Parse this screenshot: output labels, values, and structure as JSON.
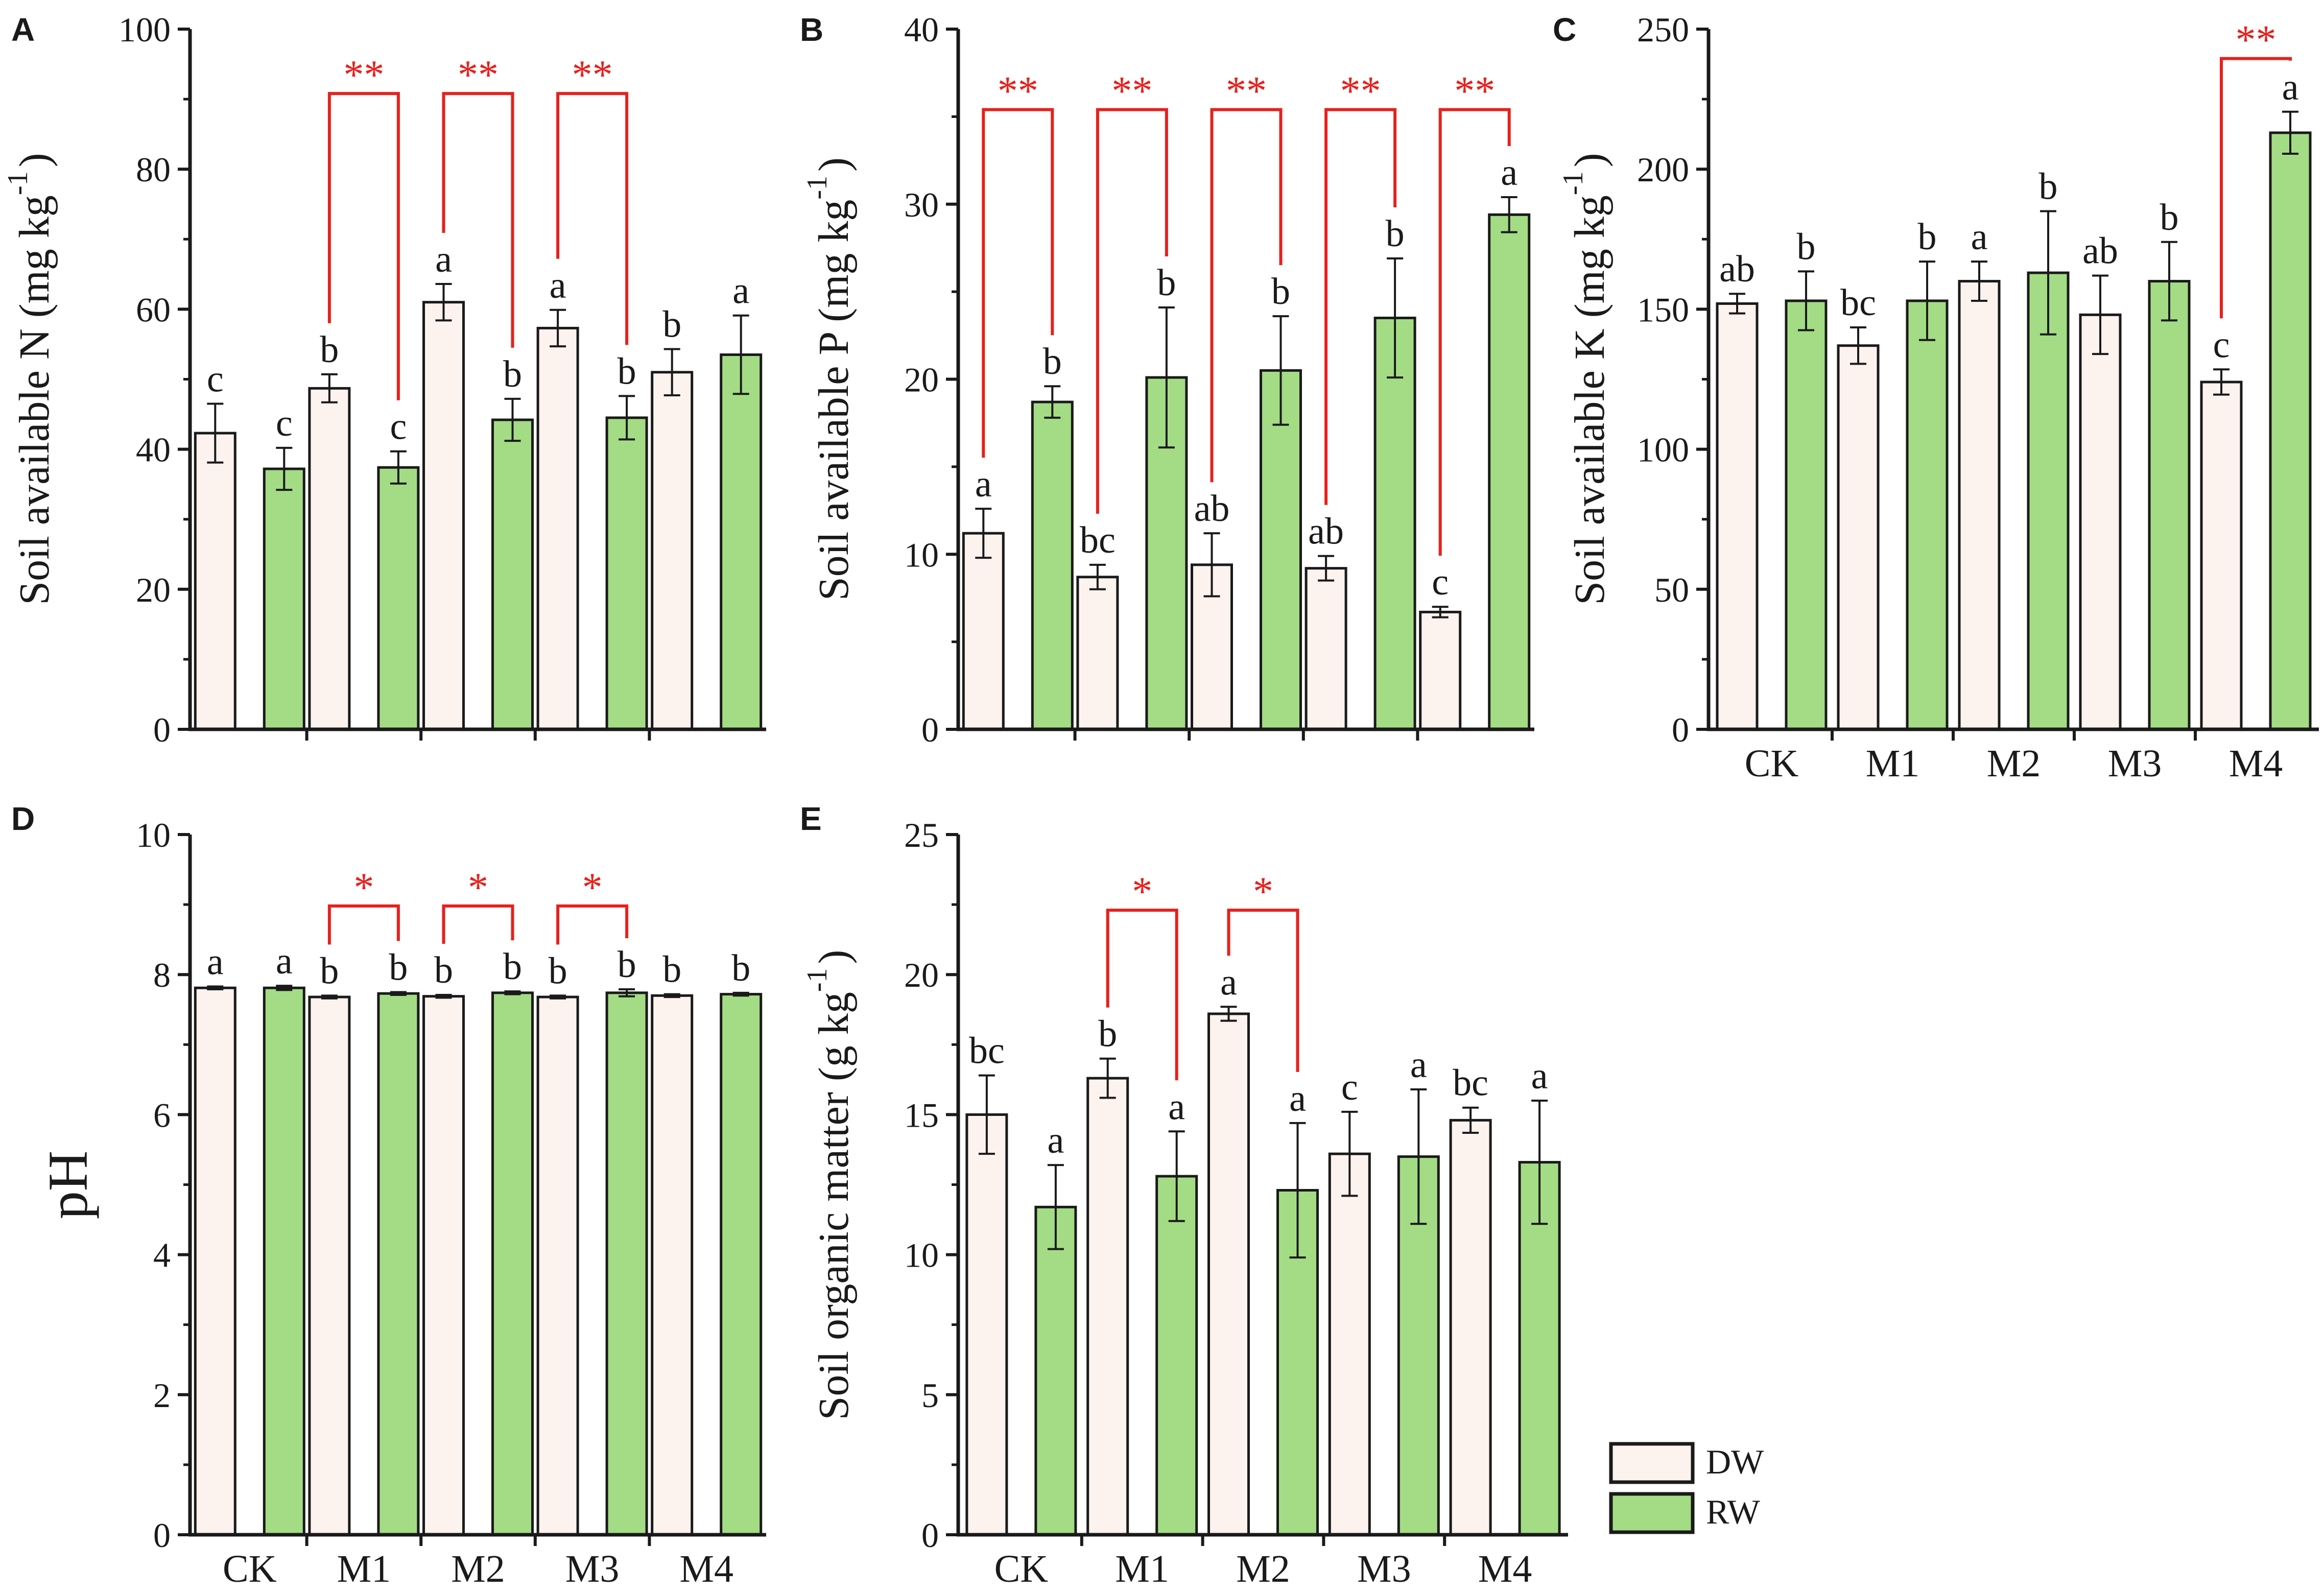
{
  "colors": {
    "dw_fill": "#fcf2ee",
    "rw_fill": "#a3dc84",
    "axis": "#1a1a1a",
    "sig": "#e8201c"
  },
  "legend": {
    "dw": "DW",
    "rw": "RW"
  },
  "chart_data": [
    {
      "panel": "A",
      "type": "bar",
      "ylabel_main": "Soil available N (mg kg",
      "ylabel_sup": "-1",
      "ylabel_end": ")",
      "ylim": [
        0,
        100
      ],
      "yticks": [
        "0",
        "20",
        "40",
        "60",
        "80",
        "100"
      ],
      "categories": [
        "CK",
        "M1",
        "M2",
        "M3",
        "M4"
      ],
      "show_xlabels": false,
      "series": [
        {
          "name": "DW",
          "values": [
            42.3,
            48.7,
            61.0,
            57.3,
            51.0
          ],
          "err": [
            4.2,
            2.0,
            2.6,
            2.6,
            3.3
          ],
          "labels": [
            "c",
            "b",
            "a",
            "a",
            "b"
          ]
        },
        {
          "name": "RW",
          "values": [
            37.2,
            37.4,
            44.2,
            44.5,
            53.5
          ],
          "err": [
            3.0,
            2.3,
            3.0,
            3.1,
            5.6
          ],
          "labels": [
            "c",
            "c",
            "b",
            "b",
            "a"
          ]
        }
      ],
      "significance": [
        {
          "category": 1,
          "label": "**",
          "top": 90.8
        },
        {
          "category": 2,
          "label": "**",
          "top": 90.8
        },
        {
          "category": 3,
          "label": "**",
          "top": 90.8
        }
      ]
    },
    {
      "panel": "B",
      "type": "bar",
      "ylabel_main": "Soil available P (mg kg",
      "ylabel_sup": "-1",
      "ylabel_end": ")",
      "ylim": [
        0,
        40
      ],
      "yticks": [
        "0",
        "10",
        "20",
        "30",
        "40"
      ],
      "categories": [
        "CK",
        "M1",
        "M2",
        "M3",
        "M4"
      ],
      "show_xlabels": false,
      "series": [
        {
          "name": "DW",
          "values": [
            11.2,
            8.7,
            9.4,
            9.2,
            6.7
          ],
          "err": [
            1.4,
            0.7,
            1.8,
            0.7,
            0.3
          ],
          "labels": [
            "a",
            "bc",
            "ab",
            "ab",
            "c"
          ]
        },
        {
          "name": "RW",
          "values": [
            18.7,
            20.1,
            20.5,
            23.5,
            29.4
          ],
          "err": [
            0.9,
            4.0,
            3.1,
            3.4,
            1.0
          ],
          "labels": [
            "b",
            "b",
            "b",
            "b",
            "a"
          ]
        }
      ],
      "significance": [
        {
          "category": 0,
          "label": "**",
          "top": 35.4
        },
        {
          "category": 1,
          "label": "**",
          "top": 35.4
        },
        {
          "category": 2,
          "label": "**",
          "top": 35.4
        },
        {
          "category": 3,
          "label": "**",
          "top": 35.4
        },
        {
          "category": 4,
          "label": "**",
          "top": 35.4
        }
      ]
    },
    {
      "panel": "C",
      "type": "bar",
      "ylabel_main": "Soil available K (mg kg",
      "ylabel_sup": "-1",
      "ylabel_end": ")",
      "ylim": [
        0,
        250
      ],
      "yticks": [
        "0",
        "50",
        "100",
        "150",
        "200",
        "250"
      ],
      "categories": [
        "CK",
        "M1",
        "M2",
        "M3",
        "M4"
      ],
      "show_xlabels": true,
      "series": [
        {
          "name": "DW",
          "values": [
            152,
            137,
            160,
            148,
            124
          ],
          "err": [
            3.5,
            6.5,
            7.0,
            14.0,
            4.5
          ],
          "labels": [
            "ab",
            "bc",
            "a",
            "ab",
            "c"
          ]
        },
        {
          "name": "RW",
          "values": [
            153,
            153,
            163,
            160,
            213
          ],
          "err": [
            10.5,
            14.0,
            22.0,
            14.0,
            7.5
          ],
          "labels": [
            "b",
            "b",
            "b",
            "b",
            "a"
          ]
        }
      ],
      "significance": [
        {
          "category": 4,
          "label": "**",
          "top": 239.5
        }
      ]
    },
    {
      "panel": "D",
      "type": "bar",
      "ylabel_main": "pH",
      "ylabel_sup": "",
      "ylabel_end": "",
      "ylim": [
        0,
        10
      ],
      "yticks": [
        "0",
        "2",
        "4",
        "6",
        "8",
        "10"
      ],
      "categories": [
        "CK",
        "M1",
        "M2",
        "M3",
        "M4"
      ],
      "show_xlabels": true,
      "series": [
        {
          "name": "DW",
          "values": [
            7.81,
            7.68,
            7.69,
            7.68,
            7.7
          ],
          "err": [
            0.02,
            0.02,
            0.02,
            0.02,
            0.02
          ],
          "labels": [
            "a",
            "b",
            "b",
            "b",
            "b"
          ]
        },
        {
          "name": "RW",
          "values": [
            7.81,
            7.73,
            7.74,
            7.74,
            7.72
          ],
          "err": [
            0.03,
            0.02,
            0.02,
            0.05,
            0.02
          ],
          "labels": [
            "a",
            "b",
            "b",
            "b",
            "b"
          ]
        }
      ],
      "significance": [
        {
          "category": 1,
          "label": "*",
          "top": 8.98
        },
        {
          "category": 2,
          "label": "*",
          "top": 8.98
        },
        {
          "category": 3,
          "label": "*",
          "top": 8.98
        }
      ]
    },
    {
      "panel": "E",
      "type": "bar",
      "ylabel_main": "Soil organic matter (g kg",
      "ylabel_sup": "-1",
      "ylabel_end": ")",
      "ylim": [
        0,
        25
      ],
      "yticks": [
        "0",
        "5",
        "10",
        "15",
        "20",
        "25"
      ],
      "categories": [
        "CK",
        "M1",
        "M2",
        "M3",
        "M4"
      ],
      "show_xlabels": true,
      "series": [
        {
          "name": "DW",
          "values": [
            15.0,
            16.3,
            18.6,
            13.6,
            14.8
          ],
          "err": [
            1.4,
            0.7,
            0.25,
            1.5,
            0.45
          ],
          "labels": [
            "bc",
            "b",
            "a",
            "c",
            "bc"
          ]
        },
        {
          "name": "RW",
          "values": [
            11.7,
            12.8,
            12.3,
            13.5,
            13.3
          ],
          "err": [
            1.5,
            1.6,
            2.4,
            2.4,
            2.2
          ],
          "labels": [
            "a",
            "a",
            "a",
            "a",
            "a"
          ]
        }
      ],
      "significance": [
        {
          "category": 1,
          "label": "*",
          "top": 22.3
        },
        {
          "category": 2,
          "label": "*",
          "top": 22.3
        }
      ]
    }
  ]
}
